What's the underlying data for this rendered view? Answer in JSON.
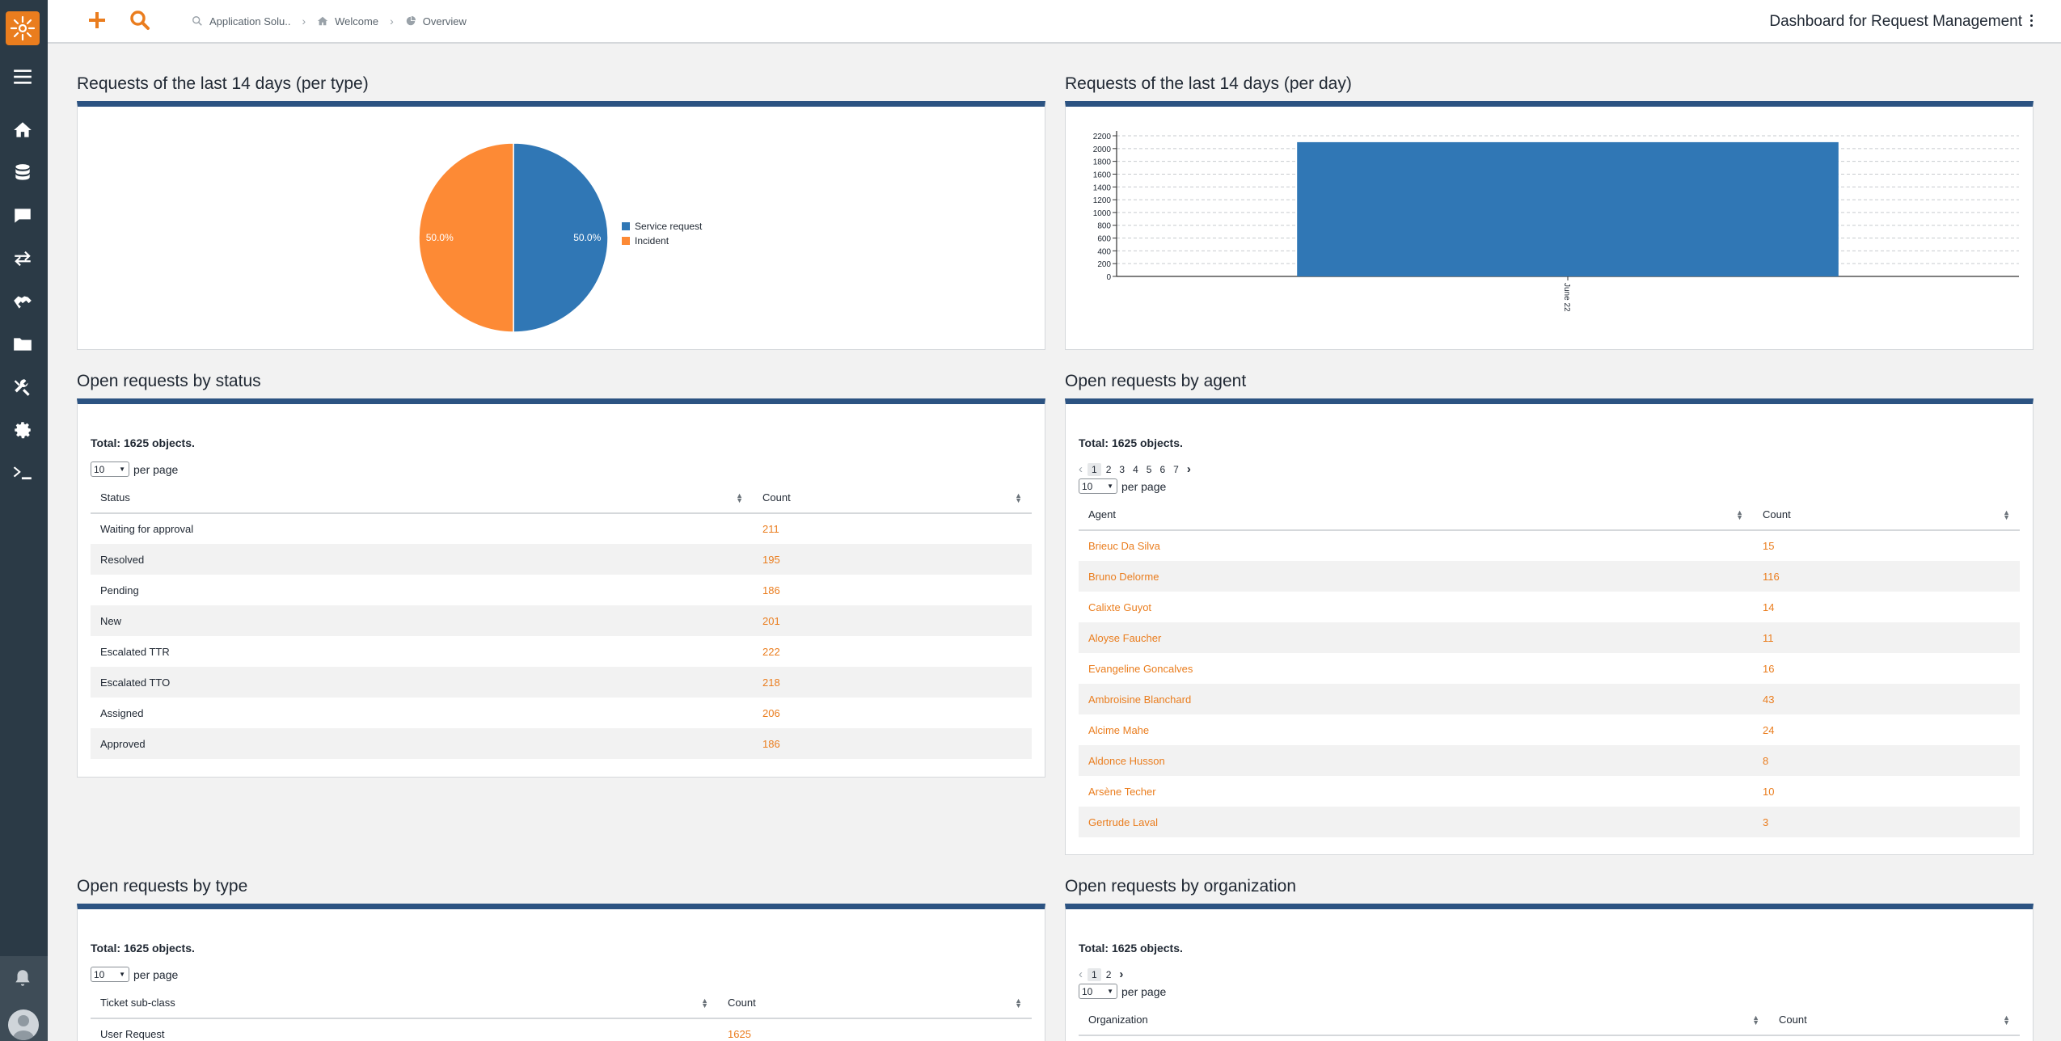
{
  "topbar": {
    "breadcrumbs": [
      {
        "label": "Application Solu..",
        "icon": "search-icon"
      },
      {
        "label": "Welcome",
        "icon": "home-icon"
      },
      {
        "label": "Overview",
        "icon": "dashboard-icon"
      }
    ],
    "title": "Dashboard for Request Management"
  },
  "sidebar": {
    "items": [
      "menu-icon",
      "home-icon",
      "database-icon",
      "chat-icon",
      "transfer-icon",
      "handshake-icon",
      "folder-icon",
      "tools-icon",
      "gear-icon",
      "terminal-icon"
    ],
    "bottom": [
      "bell-icon",
      "avatar"
    ]
  },
  "colors": {
    "accent": "#ea7d1e",
    "sidebar": "#2b3a46",
    "panel_border": "#2c5382",
    "series_blue": "#3077b5",
    "series_orange": "#fd8a35"
  },
  "panels": {
    "per_type": {
      "title": "Requests of the last 14 days (per type)"
    },
    "per_day": {
      "title": "Requests of the last 14 days (per day)"
    },
    "by_status": {
      "title": "Open requests by status",
      "total": "Total: 1625 objects.",
      "per_page_value": "10",
      "per_page_label": "per page",
      "columns": [
        "Status",
        "Count"
      ],
      "rows": [
        [
          "Waiting for approval",
          "211"
        ],
        [
          "Resolved",
          "195"
        ],
        [
          "Pending",
          "186"
        ],
        [
          "New",
          "201"
        ],
        [
          "Escalated TTR",
          "222"
        ],
        [
          "Escalated TTO",
          "218"
        ],
        [
          "Assigned",
          "206"
        ],
        [
          "Approved",
          "186"
        ]
      ]
    },
    "by_agent": {
      "title": "Open requests by agent",
      "total": "Total: 1625 objects.",
      "pages": [
        "1",
        "2",
        "3",
        "4",
        "5",
        "6",
        "7"
      ],
      "per_page_value": "10",
      "per_page_label": "per page",
      "columns": [
        "Agent",
        "Count"
      ],
      "rows": [
        [
          "Brieuc Da Silva",
          "15"
        ],
        [
          "Bruno Delorme",
          "116"
        ],
        [
          "Calixte Guyot",
          "14"
        ],
        [
          "Aloyse Faucher",
          "11"
        ],
        [
          "Evangeline Goncalves",
          "16"
        ],
        [
          "Ambroisine Blanchard",
          "43"
        ],
        [
          "Alcime Mahe",
          "24"
        ],
        [
          "Aldonce Husson",
          "8"
        ],
        [
          "Arsène Techer",
          "10"
        ],
        [
          "Gertrude Laval",
          "3"
        ]
      ]
    },
    "by_type": {
      "title": "Open requests by type",
      "total": "Total: 1625 objects.",
      "per_page_value": "10",
      "per_page_label": "per page",
      "columns": [
        "Ticket sub-class",
        "Count"
      ],
      "rows": [
        [
          "User Request",
          "1625"
        ]
      ]
    },
    "by_org": {
      "title": "Open requests by organization",
      "total": "Total: 1625 objects.",
      "pages": [
        "1",
        "2"
      ],
      "per_page_value": "10",
      "per_page_label": "per page",
      "columns": [
        "Organization",
        "Count"
      ]
    }
  },
  "chart_data": [
    {
      "type": "pie",
      "title": "Requests of the last 14 days (per type)",
      "categories": [
        "Service request",
        "Incident"
      ],
      "values": [
        50.0,
        50.0
      ],
      "labels": [
        "50.0%",
        "50.0%"
      ],
      "colors": [
        "#3077b5",
        "#fd8a35"
      ],
      "legend": "right"
    },
    {
      "type": "bar",
      "title": "Requests of the last 14 days (per day)",
      "categories": [
        "June 22"
      ],
      "values": [
        2100
      ],
      "ylim": [
        0,
        2200
      ],
      "yticks": [
        "0",
        "200",
        "400",
        "600",
        "800",
        "1000",
        "1200",
        "1400",
        "1600",
        "1800",
        "2000",
        "2200"
      ],
      "grid": true,
      "color": "#3077b5"
    }
  ]
}
